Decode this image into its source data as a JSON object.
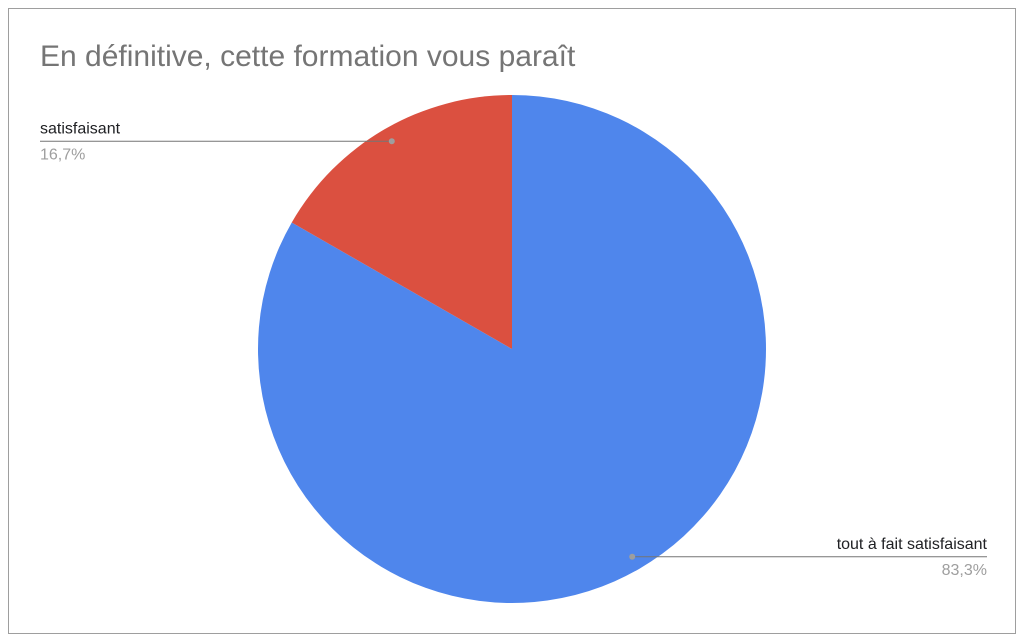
{
  "chart_data": {
    "type": "pie",
    "title": "En définitive, cette formation vous paraît",
    "categories": [
      "tout à fait satisfaisant",
      "satisfaisant"
    ],
    "values": [
      83.3,
      16.7
    ],
    "value_labels": [
      "83,3%",
      "16,7%"
    ],
    "colors": [
      "#4f86ec",
      "#db5040"
    ]
  }
}
